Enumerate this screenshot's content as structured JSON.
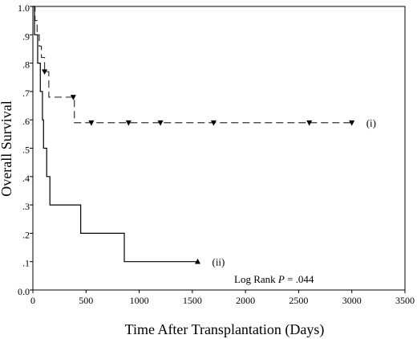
{
  "chart_data": {
    "type": "line",
    "title": "",
    "xlabel": "Time After Transplantation (Days)",
    "ylabel": "Overall Survival",
    "xlim": [
      0,
      3500
    ],
    "ylim": [
      0,
      1
    ],
    "xticks": [
      0,
      500,
      1000,
      1500,
      2000,
      2500,
      3000,
      3500
    ],
    "yticks": [
      0,
      0.1,
      0.2,
      0.3,
      0.4,
      0.5,
      0.6,
      0.7,
      0.8,
      0.9,
      1.0
    ],
    "x_tick_labels": [
      "0",
      "500",
      "1000",
      "1500",
      "2000",
      "2500",
      "3000",
      "3500"
    ],
    "y_tick_labels": [
      "0.0",
      ".1",
      ".2",
      ".3",
      ".4",
      ".5",
      ".6",
      ".7",
      ".8",
      ".9",
      "1.0"
    ],
    "grid": false,
    "step": true,
    "series": [
      {
        "name": "(i)",
        "style": "dashed",
        "color": "#333333",
        "marker": "triangle-down",
        "points": [
          [
            0,
            1.0
          ],
          [
            20,
            0.95
          ],
          [
            40,
            0.9
          ],
          [
            60,
            0.86
          ],
          [
            80,
            0.82
          ],
          [
            110,
            0.77
          ],
          [
            150,
            0.68
          ],
          [
            380,
            0.68
          ],
          [
            390,
            0.59
          ],
          [
            3000,
            0.59
          ]
        ],
        "censor_x": [
          110,
          380,
          550,
          900,
          1200,
          1700,
          2600,
          3000
        ],
        "censor_y": [
          0.77,
          0.68,
          0.59,
          0.59,
          0.59,
          0.59,
          0.59,
          0.59
        ]
      },
      {
        "name": "(ii)",
        "style": "solid",
        "color": "#000000",
        "marker": "triangle-up",
        "points": [
          [
            0,
            1.0
          ],
          [
            15,
            0.9
          ],
          [
            45,
            0.8
          ],
          [
            70,
            0.7
          ],
          [
            90,
            0.6
          ],
          [
            100,
            0.5
          ],
          [
            130,
            0.4
          ],
          [
            160,
            0.3
          ],
          [
            440,
            0.3
          ],
          [
            450,
            0.2
          ],
          [
            850,
            0.2
          ],
          [
            860,
            0.1
          ],
          [
            1550,
            0.1
          ]
        ],
        "censor_x": [
          1550
        ],
        "censor_y": [
          0.1
        ]
      }
    ],
    "annotation": {
      "prefix": "Log Rank ",
      "italic": "P",
      "suffix": " = .044"
    }
  }
}
